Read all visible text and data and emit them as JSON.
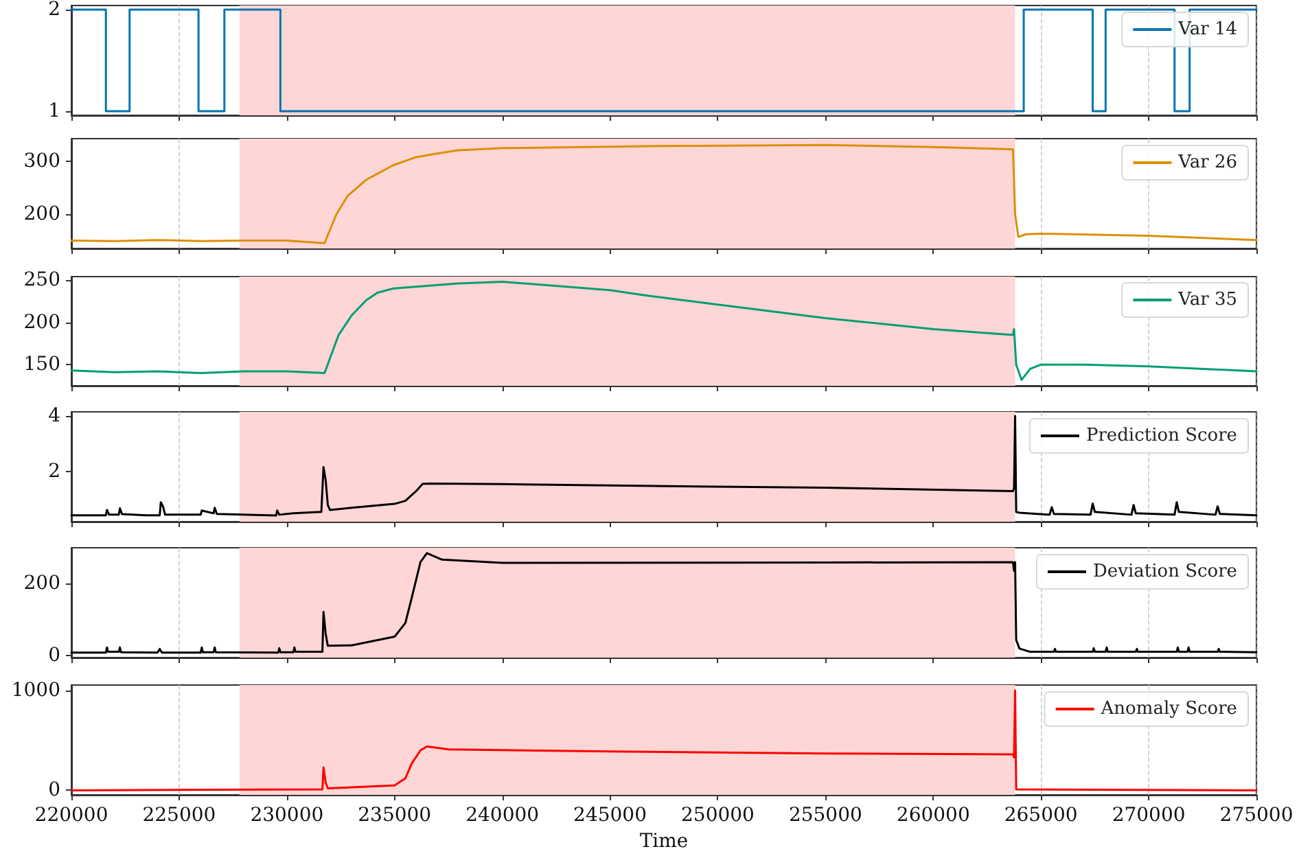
{
  "chart_data": [
    {
      "type": "step",
      "x": [
        220000,
        221600,
        222700,
        225900,
        227100,
        229700,
        264200,
        267400,
        268000,
        271200,
        271900,
        275000
      ],
      "series": [
        {
          "name": "Var 14",
          "color": "#0173b2",
          "values": [
            2,
            1,
            2,
            1,
            2,
            1,
            2,
            1,
            2,
            1,
            2,
            2
          ]
        }
      ],
      "xlim": [
        220000,
        275000
      ],
      "xticks": [
        220000,
        225000,
        230000,
        235000,
        240000,
        245000,
        250000,
        255000,
        260000,
        265000,
        270000,
        275000
      ],
      "ylim": [
        0.96,
        2.04
      ],
      "yticks": [
        1,
        2
      ],
      "bands": [
        {
          "axis": "x",
          "from": 227800,
          "to": 263800,
          "color": "#ffd6d6"
        }
      ],
      "grid": "x",
      "legend": "top right",
      "tick_labels": "y",
      "marker": "none"
    },
    {
      "type": "line",
      "x": [
        220000,
        222000,
        224000,
        226000,
        228000,
        230000,
        231750,
        232300,
        232830,
        233680,
        234950,
        236000,
        236860,
        237920,
        240040,
        247260,
        255000,
        260000,
        263700,
        263800,
        263950,
        264300,
        265000,
        270000,
        275000
      ],
      "series": [
        {
          "name": "Var 26",
          "color": "#de8f05",
          "values": [
            150,
            149,
            151,
            149,
            150,
            150,
            145,
            200,
            235,
            265,
            293,
            308,
            314,
            321,
            325,
            329,
            331,
            327,
            323,
            200,
            157,
            162,
            163,
            159,
            151
          ]
        }
      ],
      "xlim": [
        220000,
        275000
      ],
      "xticks": [
        220000,
        225000,
        230000,
        235000,
        240000,
        245000,
        250000,
        255000,
        260000,
        265000,
        270000,
        275000
      ],
      "ylim": [
        135,
        343
      ],
      "yticks": [
        200,
        300
      ],
      "bands": [
        {
          "axis": "x",
          "from": 227800,
          "to": 263800,
          "color": "#ffd6d6"
        }
      ],
      "grid": "x",
      "legend": "top right",
      "tick_labels": "y",
      "marker": "none"
    },
    {
      "type": "line",
      "x": [
        220000,
        222000,
        224000,
        226000,
        228000,
        230000,
        231750,
        232400,
        233000,
        233680,
        234200,
        234950,
        237920,
        240000,
        245000,
        246620,
        250000,
        255000,
        260000,
        263700,
        263750,
        263850,
        264100,
        264500,
        265000,
        267000,
        270000,
        275000
      ],
      "series": [
        {
          "name": "Var 35",
          "color": "#029e73",
          "values": [
            143,
            141,
            142,
            140,
            142,
            142,
            140,
            185,
            208,
            226,
            235,
            240,
            246,
            248,
            238,
            232,
            221,
            205,
            192,
            185,
            192,
            150,
            132,
            145,
            150,
            150,
            148,
            142
          ]
        }
      ],
      "xlim": [
        220000,
        275000
      ],
      "xticks": [
        220000,
        225000,
        230000,
        235000,
        240000,
        245000,
        250000,
        255000,
        260000,
        265000,
        270000,
        275000
      ],
      "ylim": [
        125,
        254
      ],
      "yticks": [
        150,
        200,
        250
      ],
      "bands": [
        {
          "axis": "x",
          "from": 227800,
          "to": 263800,
          "color": "#ffd6d6"
        }
      ],
      "grid": "x",
      "legend": "top right",
      "tick_labels": "y",
      "marker": "none"
    },
    {
      "type": "line",
      "x": [
        220000,
        221600,
        221650,
        221750,
        222200,
        222250,
        222350,
        223500,
        224100,
        224150,
        224250,
        224350,
        226000,
        226050,
        226600,
        226650,
        226750,
        229500,
        229550,
        229650,
        230300,
        231600,
        231700,
        231800,
        231900,
        232000,
        233000,
        235000,
        235500,
        236000,
        236300,
        236600,
        240000,
        245000,
        255000,
        263700,
        263750,
        263800,
        263850,
        264000,
        265400,
        265500,
        265600,
        267300,
        267400,
        267500,
        269200,
        269300,
        269400,
        271200,
        271300,
        271400,
        273100,
        273200,
        273300,
        275000
      ],
      "series": [
        {
          "name": "Prediction Score",
          "color": "#000000",
          "values": [
            0.43,
            0.43,
            0.62,
            0.45,
            0.45,
            0.68,
            0.47,
            0.43,
            0.43,
            0.9,
            0.75,
            0.45,
            0.45,
            0.6,
            0.5,
            0.7,
            0.48,
            0.42,
            0.6,
            0.45,
            0.5,
            0.55,
            2.16,
            1.7,
            0.8,
            0.62,
            0.7,
            0.84,
            0.95,
            1.3,
            1.56,
            1.57,
            1.55,
            1.5,
            1.42,
            1.3,
            1.4,
            4.0,
            0.55,
            0.52,
            0.45,
            0.72,
            0.48,
            0.45,
            0.85,
            0.55,
            0.45,
            0.8,
            0.5,
            0.45,
            0.9,
            0.55,
            0.45,
            0.75,
            0.48,
            0.43
          ]
        }
      ],
      "xlim": [
        220000,
        275000
      ],
      "xticks": [
        220000,
        225000,
        230000,
        235000,
        240000,
        245000,
        250000,
        255000,
        260000,
        265000,
        270000,
        275000
      ],
      "ylim": [
        0.2,
        4.15
      ],
      "yticks": [
        2,
        4
      ],
      "bands": [
        {
          "axis": "x",
          "from": 227800,
          "to": 263800,
          "color": "#ffd6d6"
        }
      ],
      "grid": "x",
      "legend": "top right",
      "tick_labels": "y",
      "marker": "none"
    },
    {
      "type": "line",
      "x": [
        220000,
        221600,
        221650,
        221700,
        222200,
        222250,
        222300,
        224000,
        224100,
        224200,
        226000,
        226050,
        226100,
        226600,
        226650,
        226700,
        229600,
        229650,
        229700,
        230300,
        230350,
        230400,
        231650,
        231700,
        231800,
        231900,
        233000,
        235000,
        235500,
        235800,
        236200,
        236500,
        237200,
        240000,
        255000,
        263700,
        263750,
        263800,
        263850,
        264000,
        264500,
        265600,
        265650,
        265700,
        267400,
        267450,
        267500,
        268000,
        268050,
        268100,
        269400,
        269450,
        269500,
        271300,
        271350,
        271400,
        271800,
        271850,
        271900,
        273200,
        273250,
        273300,
        275000
      ],
      "series": [
        {
          "name": "Deviation Score",
          "color": "#000000",
          "values": [
            8,
            8,
            22,
            10,
            10,
            22,
            9,
            8,
            18,
            8,
            8,
            22,
            9,
            9,
            22,
            9,
            8,
            20,
            9,
            9,
            22,
            10,
            10,
            121,
            60,
            27,
            28,
            52,
            90,
            161,
            259,
            284,
            266,
            257,
            258,
            259,
            235,
            259,
            43,
            19,
            10,
            10,
            18,
            10,
            10,
            20,
            10,
            10,
            22,
            10,
            10,
            18,
            10,
            10,
            22,
            10,
            10,
            22,
            10,
            10,
            18,
            10,
            9
          ]
        }
      ],
      "xlim": [
        220000,
        275000
      ],
      "xticks": [
        220000,
        225000,
        230000,
        235000,
        240000,
        245000,
        250000,
        255000,
        260000,
        265000,
        270000,
        275000
      ],
      "ylim": [
        -6,
        299
      ],
      "yticks": [
        0,
        200
      ],
      "bands": [
        {
          "axis": "x",
          "from": 227800,
          "to": 263800,
          "color": "#ffd6d6"
        }
      ],
      "grid": "x",
      "legend": "top right",
      "tick_labels": "y",
      "marker": "none"
    },
    {
      "type": "line",
      "x": [
        220000,
        231650,
        231700,
        231800,
        231900,
        233000,
        235000,
        235500,
        235800,
        236200,
        236500,
        237500,
        245000,
        255000,
        263700,
        263750,
        263800,
        263850,
        275000
      ],
      "series": [
        {
          "name": "Anomaly Score",
          "color": "#ff0000",
          "values": [
            0,
            10,
            230,
            80,
            20,
            30,
            50,
            120,
            270,
            400,
            440,
            410,
            390,
            370,
            360,
            330,
            1000,
            10,
            0
          ]
        }
      ],
      "xlim": [
        220000,
        275000
      ],
      "xticks": [
        220000,
        225000,
        230000,
        235000,
        240000,
        245000,
        250000,
        255000,
        260000,
        265000,
        270000,
        275000
      ],
      "ylim": [
        -45,
        1055
      ],
      "yticks": [
        0,
        1000
      ],
      "xlabel": "Time",
      "bands": [
        {
          "axis": "x",
          "from": 227800,
          "to": 263800,
          "color": "#ffd6d6"
        }
      ],
      "grid": "x",
      "legend": "top right",
      "marker": "none"
    }
  ]
}
